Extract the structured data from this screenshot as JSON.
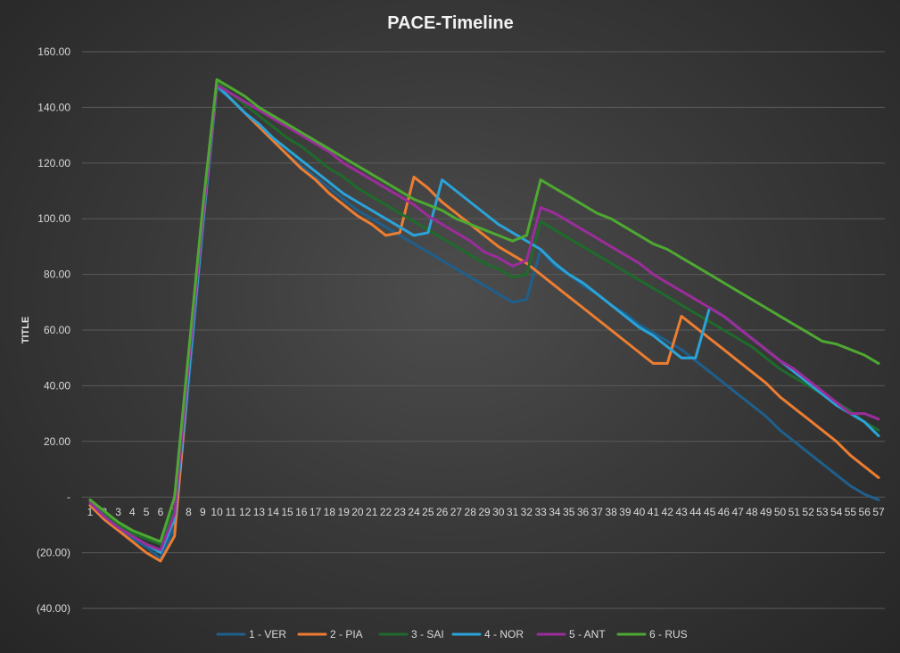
{
  "chart_data": {
    "type": "line",
    "title": "PACE-Timeline",
    "xlabel": "",
    "ylabel": "TITLE",
    "ylim": [
      -40,
      160
    ],
    "y_ticks": [
      {
        "value": 160,
        "label": "160.00"
      },
      {
        "value": 140,
        "label": "140.00"
      },
      {
        "value": 120,
        "label": "120.00"
      },
      {
        "value": 100,
        "label": "100.00"
      },
      {
        "value": 80,
        "label": "80.00"
      },
      {
        "value": 60,
        "label": "60.00"
      },
      {
        "value": 40,
        "label": "40.00"
      },
      {
        "value": 20,
        "label": "20.00"
      },
      {
        "value": 0,
        "label": "-"
      },
      {
        "value": -20,
        "label": "(20.00)"
      },
      {
        "value": -40,
        "label": "(40.00)"
      }
    ],
    "grid": true,
    "legend_position": "bottom",
    "x": [
      1,
      2,
      3,
      4,
      5,
      6,
      7,
      8,
      9,
      10,
      11,
      12,
      13,
      14,
      15,
      16,
      17,
      18,
      19,
      20,
      21,
      22,
      23,
      24,
      25,
      26,
      27,
      28,
      29,
      30,
      31,
      32,
      33,
      34,
      35,
      36,
      37,
      38,
      39,
      40,
      41,
      42,
      43,
      44,
      45,
      46,
      47,
      48,
      49,
      50,
      51,
      52,
      53,
      54,
      55,
      56,
      57
    ],
    "series": [
      {
        "name": "1 - VER",
        "color": "#1f5f8b",
        "values": [
          -3,
          -8,
          -12,
          -15,
          -18,
          -22,
          -11,
          40,
          96,
          147,
          143,
          138,
          133,
          128,
          123,
          119,
          115,
          111,
          107,
          103,
          100,
          97,
          94,
          91,
          88,
          85,
          82,
          79,
          76,
          73,
          70,
          71,
          89,
          83,
          80,
          76,
          73,
          69,
          66,
          62,
          59,
          56,
          53,
          49,
          45,
          41,
          37,
          33,
          29,
          24,
          20,
          16,
          12,
          8,
          4,
          1,
          -1
        ]
      },
      {
        "name": "2 - PIA",
        "color": "#ed7d31",
        "values": [
          -3,
          -8,
          -12,
          -16,
          -20,
          -23,
          -14,
          44,
          98,
          148,
          143,
          138,
          133,
          128,
          123,
          118,
          114,
          109,
          105,
          101,
          98,
          94,
          95,
          115,
          111,
          106,
          102,
          98,
          94,
          90,
          87,
          84,
          80,
          76,
          72,
          68,
          64,
          60,
          56,
          52,
          48,
          48,
          65,
          61,
          57,
          53,
          49,
          45,
          41,
          36,
          32,
          28,
          24,
          20,
          15,
          11,
          7
        ]
      },
      {
        "name": "3 - SAI",
        "color": "#1e6b2b",
        "values": [
          -1,
          -6,
          -10,
          -13,
          -15,
          -17,
          -4,
          50,
          102,
          149,
          145,
          141,
          137,
          133,
          129,
          126,
          122,
          118,
          115,
          111,
          108,
          105,
          102,
          99,
          96,
          93,
          90,
          87,
          84,
          82,
          79,
          80,
          99,
          96,
          93,
          90,
          87,
          84,
          81,
          78,
          75,
          72,
          69,
          66,
          63,
          60,
          57,
          54,
          50,
          46,
          43,
          40,
          37,
          34,
          31,
          27,
          24
        ]
      },
      {
        "name": "4 - NOR",
        "color": "#2aa3d8",
        "values": [
          -2,
          -7,
          -11,
          -14,
          -17,
          -20,
          -8,
          44,
          98,
          148,
          143,
          138,
          134,
          129,
          125,
          121,
          117,
          113,
          109,
          106,
          103,
          100,
          97,
          94,
          95,
          114,
          110,
          106,
          102,
          98,
          95,
          92,
          89,
          84,
          80,
          77,
          73,
          69,
          65,
          61,
          58,
          54,
          50,
          50,
          68,
          65,
          61,
          57,
          53,
          49,
          45,
          41,
          37,
          33,
          30,
          27,
          22
        ]
      },
      {
        "name": "5 - ANT",
        "color": "#9b2d9b",
        "values": [
          -2,
          -7,
          -11,
          -14,
          -17,
          -19,
          -6,
          48,
          100,
          148,
          145,
          142,
          139,
          136,
          133,
          130,
          127,
          124,
          120,
          117,
          114,
          111,
          108,
          105,
          101,
          98,
          95,
          92,
          88,
          86,
          83,
          85,
          104,
          102,
          99,
          96,
          93,
          90,
          87,
          84,
          80,
          77,
          74,
          71,
          68,
          65,
          61,
          57,
          53,
          49,
          46,
          42,
          38,
          34,
          30,
          30,
          28
        ]
      },
      {
        "name": "6 - RUS",
        "color": "#4ea832",
        "values": [
          -1,
          -5,
          -9,
          -12,
          -14,
          -16,
          0,
          52,
          104,
          150,
          147,
          144,
          140,
          137,
          134,
          131,
          128,
          125,
          122,
          119,
          116,
          113,
          110,
          107,
          105,
          103,
          100,
          98,
          96,
          94,
          92,
          94,
          114,
          111,
          108,
          105,
          102,
          100,
          97,
          94,
          91,
          89,
          86,
          83,
          80,
          77,
          74,
          71,
          68,
          65,
          62,
          59,
          56,
          55,
          53,
          51,
          48
        ]
      }
    ]
  }
}
